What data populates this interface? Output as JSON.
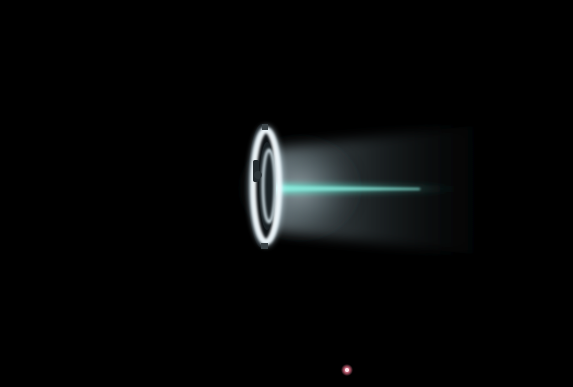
{
  "image": {
    "subject_icons": {
      "thruster": "thruster-icon",
      "plume": "plasma-plume-icon",
      "spark": "spark-icon"
    },
    "colors": {
      "background": "#000000",
      "ring_glow": "#ffffff",
      "plume_core": "#5fd0c0",
      "plume_haze": "#b8c8d0",
      "spark": "#ff8aa0"
    }
  }
}
